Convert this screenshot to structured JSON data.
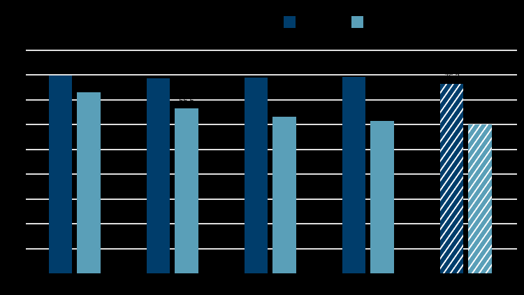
{
  "chart_data": {
    "type": "bar",
    "title": "",
    "xlabel": "",
    "ylabel": "",
    "categories": [
      "",
      "",
      "",
      "",
      ""
    ],
    "series": [
      {
        "name": "",
        "color": "#003d6b",
        "values": [
          79.7,
          78.6,
          78.9,
          79.2,
          76.3
        ]
      },
      {
        "name": "",
        "color": "#5a9fb8",
        "values": [
          73.0,
          66.5,
          63.1,
          61.4,
          60.0
        ]
      }
    ],
    "last_category_hatched": true,
    "ylim": [
      0,
      90
    ],
    "gridlines": [
      10,
      20,
      30,
      40,
      50,
      60,
      70,
      80,
      90
    ],
    "grid": true,
    "legend_position": "top"
  },
  "legend": {
    "items": [
      {
        "label": "",
        "color": "#003d6b"
      },
      {
        "label": "",
        "color": "#5a9fb8"
      }
    ]
  }
}
